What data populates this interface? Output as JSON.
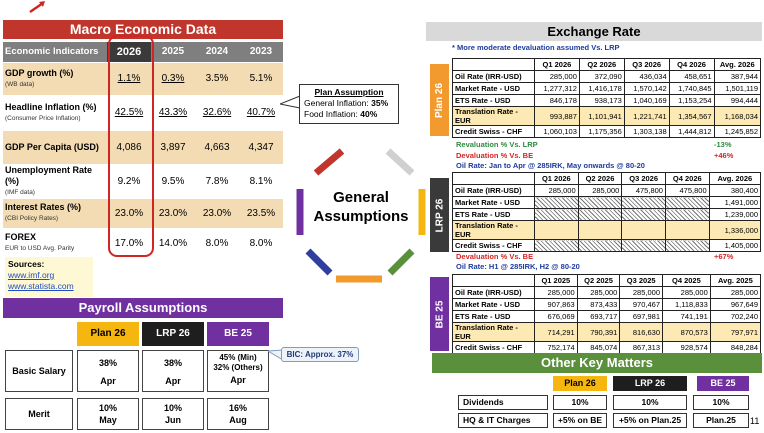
{
  "macro": {
    "title": "Macro Economic Data",
    "header": [
      "Economic Indicators",
      "2026",
      "2025",
      "2024",
      "2023"
    ],
    "rows": [
      {
        "label": "GDP growth (%)",
        "sub": "(WB data)",
        "values": [
          "1.1%",
          "0.3%",
          "3.5%",
          "5.1%"
        ]
      },
      {
        "label": "Headline Inflation (%)",
        "sub": "(Consumer Price Inflation)",
        "values": [
          "42.5%",
          "43.3%",
          "32.6%",
          "40.7%"
        ]
      },
      {
        "label": "GDP Per Capita (USD)",
        "sub": "",
        "values": [
          "4,086",
          "3,897",
          "4,663",
          "4,347"
        ]
      },
      {
        "label": "Unemployment Rate (%)",
        "sub": "(IMF data)",
        "values": [
          "9.2%",
          "9.5%",
          "7.8%",
          "8.1%"
        ]
      },
      {
        "label": "Interest Rates (%)",
        "sub": "(CBI Policy Rates)",
        "values": [
          "23.0%",
          "23.0%",
          "23.0%",
          "23.5%"
        ]
      },
      {
        "label": "FOREX",
        "sub": "EUR to USD Avg. Parity",
        "values": [
          "17.0%",
          "14.0%",
          "8.0%",
          "8.0%"
        ]
      }
    ]
  },
  "sources": {
    "title": "Sources:",
    "links": [
      "www.imf.org",
      "www.statista.com"
    ]
  },
  "plan_assumption": {
    "title": "Plan Assumption",
    "general_label": "General Inflation:",
    "general_value": "35%",
    "food_label": "Food Inflation:",
    "food_value": "40%"
  },
  "center": {
    "line1": "General",
    "line2": "Assumptions"
  },
  "payroll": {
    "title": "Payroll Assumptions",
    "columns": [
      "Plan 26",
      "LRP 26",
      "BE 25"
    ],
    "basic_salary": {
      "label": "Basic Salary",
      "plan": [
        "38%",
        "Apr"
      ],
      "lrp": [
        "38%",
        "Apr"
      ],
      "be": [
        "45% (Min)",
        "32% (Others)",
        "Apr"
      ]
    },
    "merit": {
      "label": "Merit",
      "plan": [
        "10%",
        "May"
      ],
      "lrp": [
        "10%",
        "Jun"
      ],
      "be": [
        "16%",
        "Aug"
      ]
    },
    "bic_note": "BIC: Approx. 37%"
  },
  "fx": {
    "title": "Exchange Rate",
    "note": "* More moderate devaluation assumed Vs. LRP",
    "plan26": {
      "side": "Plan 26",
      "header": [
        "",
        "Q1 2026",
        "Q2 2026",
        "Q3 2026",
        "Q4 2026",
        "Avg. 2026"
      ],
      "rows": [
        [
          "Oil Rate (IRR-USD)",
          "285,000",
          "372,090",
          "436,034",
          "458,651",
          "387,944"
        ],
        [
          "Market Rate - USD",
          "1,277,312",
          "1,416,178",
          "1,570,142",
          "1,740,845",
          "1,501,119"
        ],
        [
          "ETS Rate - USD",
          "846,178",
          "938,173",
          "1,040,169",
          "1,153,254",
          "994,444"
        ],
        [
          "Translation Rate - EUR",
          "993,887",
          "1,101,941",
          "1,221,741",
          "1,354,567",
          "1,168,034"
        ],
        [
          "Credit Swiss - CHF",
          "1,060,103",
          "1,175,356",
          "1,303,138",
          "1,444,812",
          "1,245,852"
        ]
      ],
      "reval_label": "Revaluation % Vs. LRP",
      "reval_value": "-13%",
      "deval_label": "Devaluation % Vs. BE",
      "deval_value": "+46%"
    },
    "lrp26": {
      "side": "LRP 26",
      "caption": "Oil Rate: Jan to Apr @ 285IRK, May onwards @ 80-20",
      "header": [
        "",
        "Q1 2026",
        "Q2 2026",
        "Q3 2026",
        "Q4 2026",
        "Avg. 2026"
      ],
      "rows": [
        [
          "Oil Rate (IRR-USD)",
          "285,000",
          "285,000",
          "475,800",
          "475,800",
          "380,400"
        ],
        [
          "Market Rate - USD",
          "",
          "",
          "",
          "",
          "1,491,000"
        ],
        [
          "ETS Rate - USD",
          "",
          "",
          "",
          "",
          "1,239,000"
        ],
        [
          "Translation Rate - EUR",
          "",
          "",
          "",
          "",
          "1,336,000"
        ],
        [
          "Credit Swiss - CHF",
          "",
          "",
          "",
          "",
          "1,405,000"
        ]
      ],
      "deval_label": "Devaluation % Vs. BE",
      "deval_value": "+67%"
    },
    "be25": {
      "side": "BE 25",
      "caption": "Oil Rate: H1 @ 285IRK, H2 @ 80-20",
      "header": [
        "",
        "Q1 2025",
        "Q2 2025",
        "Q3 2025",
        "Q4 2025",
        "Avg. 2025"
      ],
      "rows": [
        [
          "Oil Rate (IRR-USD)",
          "285,000",
          "285,000",
          "285,000",
          "285,000",
          "285,000"
        ],
        [
          "Market Rate - USD",
          "907,863",
          "873,433",
          "970,467",
          "1,118,833",
          "967,649"
        ],
        [
          "ETS Rate - USD",
          "676,069",
          "693,717",
          "697,981",
          "741,191",
          "702,240"
        ],
        [
          "Translation Rate - EUR",
          "714,291",
          "790,391",
          "816,630",
          "870,573",
          "797,971"
        ],
        [
          "Credit Swiss - CHF",
          "752,174",
          "845,074",
          "867,313",
          "928,574",
          "848,284"
        ]
      ]
    }
  },
  "other": {
    "title": "Other Key Matters",
    "columns": [
      "Plan 26",
      "LRP 26",
      "BE 25"
    ],
    "rows": [
      {
        "label": "Dividends",
        "values": [
          "10%",
          "10%",
          "10%"
        ]
      },
      {
        "label": "HQ & IT Charges",
        "values": [
          "+5% on BE",
          "+5% on Plan.25",
          "Plan.25"
        ]
      }
    ]
  },
  "page_number": "11",
  "colors": {
    "red": "#c0362c",
    "purple": "#7030a0",
    "green": "#5a8f3c",
    "orange": "#f29a2e",
    "gold": "#f5b70f",
    "tan": "#f3dcb3"
  },
  "icons": [
    "red-arrow-icon"
  ]
}
